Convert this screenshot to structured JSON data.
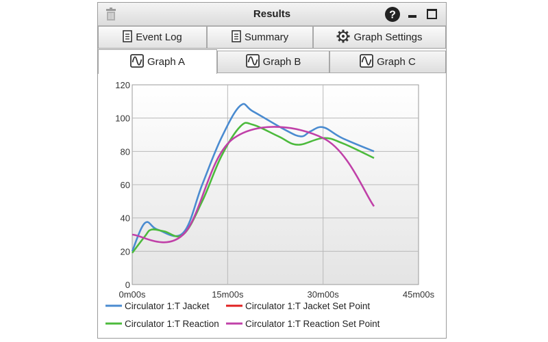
{
  "window": {
    "title": "Results",
    "icons": {
      "left": "trash-icon",
      "help": "help-icon",
      "minimize": "minimize-icon",
      "maximize": "maximize-icon"
    }
  },
  "toolbar_tabs": [
    {
      "label": "Event Log",
      "icon": "document-icon"
    },
    {
      "label": "Summary",
      "icon": "document-icon"
    },
    {
      "label": "Graph Settings",
      "icon": "gear-icon"
    }
  ],
  "graph_tabs": [
    {
      "label": "Graph A",
      "icon": "waveform-icon",
      "active": true
    },
    {
      "label": "Graph B",
      "icon": "waveform-icon",
      "active": false
    },
    {
      "label": "Graph C",
      "icon": "waveform-icon",
      "active": false
    }
  ],
  "chart_data": {
    "type": "line",
    "x_unit": "minutes",
    "xlim": [
      0,
      45
    ],
    "ylim": [
      0,
      120
    ],
    "xticks": [
      0,
      15,
      30,
      45
    ],
    "xtick_labels": [
      "0m00s",
      "15m00s",
      "30m00s",
      "45m00s"
    ],
    "yticks": [
      0,
      20,
      40,
      60,
      80,
      100,
      120
    ],
    "ytick_labels": [
      "0",
      "20",
      "40",
      "60",
      "80",
      "100",
      "120"
    ],
    "grid": true,
    "legend_position": "bottom",
    "series": [
      {
        "name": "Circulator 1:T Jacket",
        "color": "#4a8bd0",
        "x": [
          0,
          2,
          4,
          8,
          11,
          14,
          17,
          19,
          24,
          26.5,
          28,
          30,
          33,
          38
        ],
        "y": [
          20,
          37,
          33,
          31,
          60,
          88,
          107.5,
          104,
          93,
          89,
          92,
          94.5,
          88,
          80
        ]
      },
      {
        "name": "Circulator 1:T Jacket Set Point",
        "color": "#e02020",
        "x": [],
        "y": []
      },
      {
        "name": "Circulator 1:T Reaction",
        "color": "#4cba3c",
        "x": [
          0,
          2,
          3,
          5,
          8,
          11,
          14,
          17,
          19,
          23,
          26,
          30,
          33,
          38
        ],
        "y": [
          19,
          29,
          33,
          32,
          30,
          50,
          77,
          95,
          96,
          89,
          84,
          88,
          85,
          76
        ]
      },
      {
        "name": "Circulator 1:T Reaction Set Point",
        "color": "#c040a8",
        "x": [
          0,
          8,
          16,
          30,
          38
        ],
        "y": [
          30,
          30,
          88,
          88,
          47
        ]
      }
    ]
  }
}
